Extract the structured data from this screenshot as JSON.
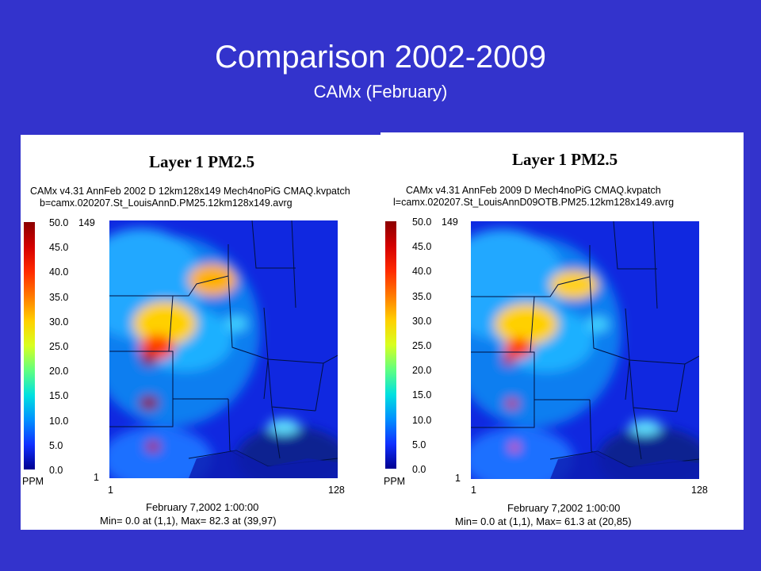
{
  "slide": {
    "title": "Comparison 2002-2009",
    "subtitle": "CAMx (February)"
  },
  "colors": {
    "background": "#3333cc",
    "title_text": "#ffffff"
  },
  "colorbar": {
    "unit": "PPM",
    "labels": [
      "50.0",
      "45.0",
      "40.0",
      "35.0",
      "30.0",
      "25.0",
      "20.0",
      "15.0",
      "10.0",
      "5.0",
      "0.0"
    ],
    "stops": [
      "#8b0000",
      "#d40000",
      "#ff2a00",
      "#ff7a00",
      "#ffd000",
      "#d8ff20",
      "#60ff80",
      "#00e0e0",
      "#0090ff",
      "#1030ff",
      "#000090"
    ]
  },
  "panels": [
    {
      "layer_title": "Layer 1  PM2.5",
      "line1": "CAMx v4.31 AnnFeb 2002 D 12km128x149 Mech4noPiG CMAQ.kvpatch",
      "line2": "b=camx.020207.St_LouisAnnD.PM25.12km128x149.avrg",
      "grid_top": "149",
      "grid_bottom": "1",
      "grid_left": "1",
      "grid_right": "128",
      "date": "February 7,2002 1:00:00",
      "stats": "Min=    0.0 at (1,1), Max=   82.3 at (39,97)"
    },
    {
      "layer_title": "Layer 1  PM2.5",
      "line1": "CAMx v4.31 AnnFeb 2009 D Mech4noPiG CMAQ.kvpatch",
      "line2": "l=camx.020207.St_LouisAnnD09OTB.PM25.12km128x149.avrg",
      "grid_top": "149",
      "grid_bottom": "1",
      "grid_left": "1",
      "grid_right": "128",
      "date": "February 7,2002 1:00:00",
      "stats": "Min=    0.0 at (1,1), Max=   61.3 at (20,85)"
    }
  ]
}
